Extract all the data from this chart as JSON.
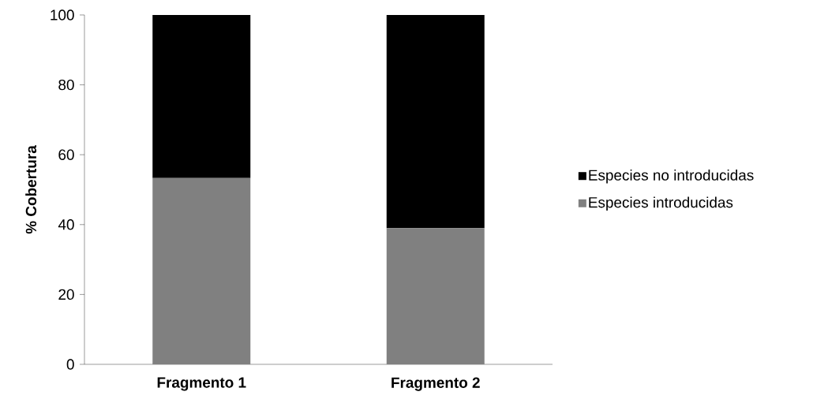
{
  "chart_data": {
    "type": "bar",
    "stacked": true,
    "ylabel": "% Cobertura",
    "categories": [
      "Fragmento 1",
      "Fragmento 2"
    ],
    "series": [
      {
        "name": "Especies introducidas",
        "color": "#808080",
        "values": [
          53.3,
          39
        ]
      },
      {
        "name": "Especies no introducidas",
        "color": "#000000",
        "values": [
          46.7,
          61
        ]
      }
    ],
    "ylim": [
      0,
      100
    ],
    "yticks": [
      0,
      20,
      40,
      60,
      80,
      100
    ],
    "legend": "right"
  }
}
